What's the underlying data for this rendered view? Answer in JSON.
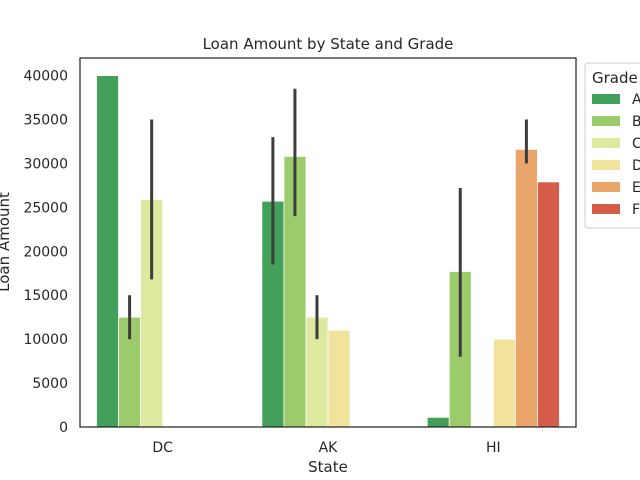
{
  "chart_data": {
    "type": "bar",
    "title": "Loan Amount by State and Grade",
    "xlabel": "State",
    "ylabel": "Loan Amount",
    "categories": [
      "DC",
      "AK",
      "HI"
    ],
    "ylim": [
      0,
      42000
    ],
    "yticks": [
      0,
      5000,
      10000,
      15000,
      20000,
      25000,
      30000,
      35000,
      40000
    ],
    "grid": false,
    "legend": {
      "title": "Grade",
      "placement": "outside-top-right"
    },
    "series": [
      {
        "name": "A",
        "color": "#43a05a",
        "values": [
          40000,
          25700,
          1100
        ],
        "ci": [
          [
            40000,
            40000
          ],
          [
            18500,
            33000
          ],
          [
            1100,
            1100
          ]
        ]
      },
      {
        "name": "B",
        "color": "#9ccb6b",
        "values": [
          12500,
          30800,
          17700
        ],
        "ci": [
          [
            10000,
            15000
          ],
          [
            24000,
            38500
          ],
          [
            8000,
            27200
          ]
        ]
      },
      {
        "name": "C",
        "color": "#dce99e",
        "values": [
          25900,
          12500,
          null
        ],
        "ci": [
          [
            16800,
            35000
          ],
          [
            10000,
            15000
          ],
          null
        ]
      },
      {
        "name": "D",
        "color": "#f2e39c",
        "values": [
          null,
          11000,
          10000
        ],
        "ci": [
          null,
          [
            11000,
            11000
          ],
          [
            10000,
            10000
          ]
        ]
      },
      {
        "name": "E",
        "color": "#eaa56a",
        "values": [
          null,
          null,
          31600
        ],
        "ci": [
          null,
          null,
          [
            30000,
            35000
          ]
        ]
      },
      {
        "name": "F",
        "color": "#d45c48",
        "values": [
          null,
          null,
          27900
        ],
        "ci": [
          null,
          null,
          [
            27900,
            27900
          ]
        ]
      }
    ]
  }
}
